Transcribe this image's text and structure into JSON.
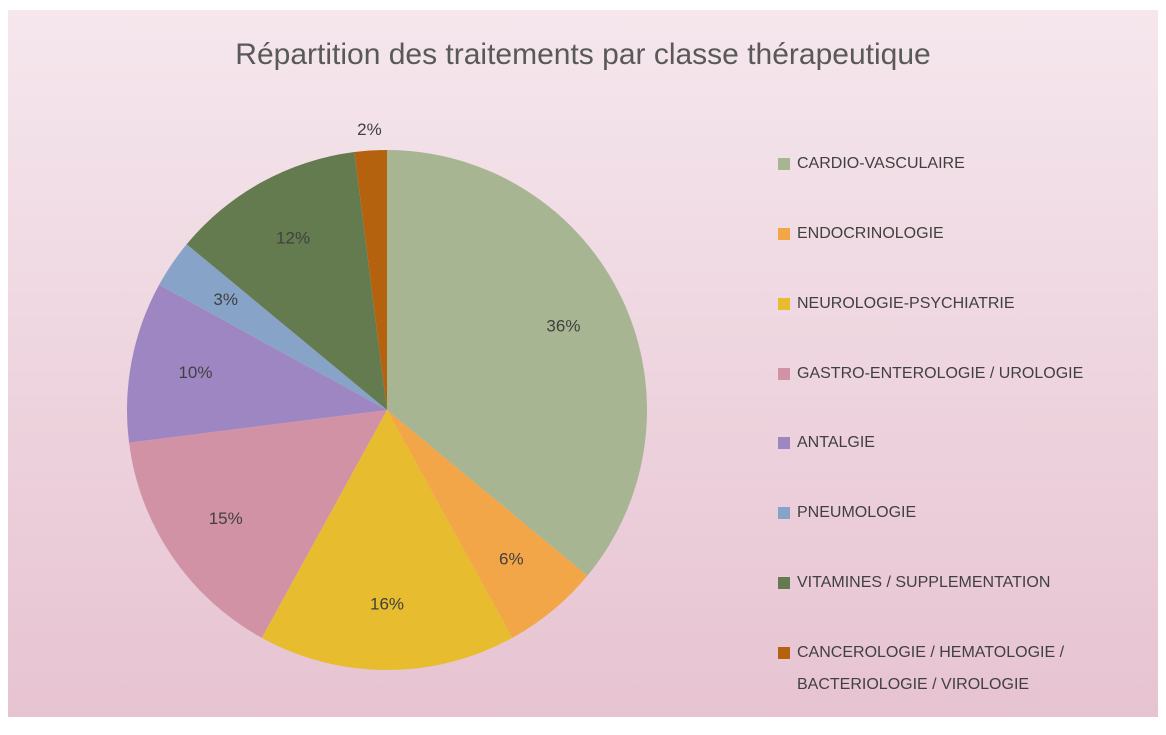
{
  "chart_data": {
    "type": "pie",
    "title": "Répartition des traitements par classe thérapeutique",
    "categories": [
      "CARDIO-VASCULAIRE",
      "ENDOCRINOLOGIE",
      "NEUROLOGIE-PSYCHIATRIE",
      "GASTRO-ENTEROLOGIE / UROLOGIE",
      "ANTALGIE",
      "PNEUMOLOGIE",
      "VITAMINES / SUPPLEMENTATION",
      "CANCEROLOGIE / HEMATOLOGIE / BACTERIOLOGIE / VIROLOGIE"
    ],
    "values": [
      36,
      6,
      16,
      15,
      10,
      3,
      12,
      2
    ],
    "value_labels": [
      "36%",
      "6%",
      "16%",
      "15%",
      "10%",
      "3%",
      "12%",
      "2%"
    ],
    "colors": [
      "#a8b592",
      "#f3a647",
      "#e8bc2f",
      "#d192a6",
      "#9e86c3",
      "#88a3c8",
      "#647a4f",
      "#b5620f"
    ],
    "legend": "right"
  }
}
